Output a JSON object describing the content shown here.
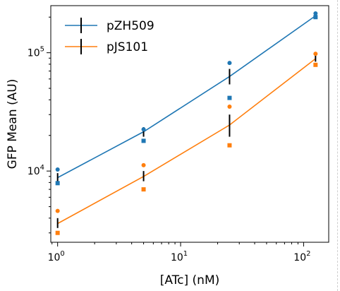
{
  "chart_data": {
    "type": "line",
    "xscale": "log",
    "yscale": "log",
    "xlabel": "[ATc] (nM)",
    "ylabel": "GFP Mean (AU)",
    "xlim": [
      0.88,
      160
    ],
    "ylim": [
      2500,
      250000
    ],
    "x_ticks": [
      {
        "base": "10",
        "exp": "0",
        "value": 1
      },
      {
        "base": "10",
        "exp": "1",
        "value": 10
      },
      {
        "base": "10",
        "exp": "2",
        "value": 100
      }
    ],
    "y_ticks": [
      {
        "base": "10",
        "exp": "4",
        "value": 10000
      },
      {
        "base": "10",
        "exp": "5",
        "value": 100000
      }
    ],
    "grid": false,
    "legend_position": "top-left",
    "series": [
      {
        "name": "pZH509",
        "color": "#1f77b4",
        "x": [
          1,
          5,
          25,
          125
        ],
        "y": [
          8800,
          21500,
          63000,
          205000
        ],
        "err_low": [
          8100,
          19500,
          54000,
          195000
        ],
        "err_high": [
          9600,
          23500,
          73000,
          222000
        ],
        "points_circle": [
          10300,
          22500,
          82000,
          215000
        ],
        "points_square": [
          7900,
          18000,
          41500,
          200000
        ]
      },
      {
        "name": "pJS101",
        "color": "#ff7f0e",
        "x": [
          1,
          5,
          25,
          125
        ],
        "y": [
          3600,
          9000,
          24500,
          89000
        ],
        "err_low": [
          3300,
          8200,
          19500,
          84000
        ],
        "err_high": [
          4000,
          10000,
          30000,
          95000
        ],
        "points_circle": [
          4600,
          11200,
          35000,
          98000
        ],
        "points_square": [
          3000,
          7000,
          16500,
          79000
        ]
      }
    ]
  }
}
